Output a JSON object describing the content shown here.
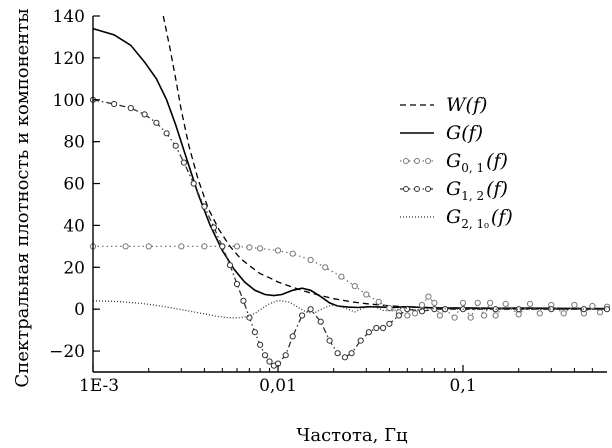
{
  "chart_data": {
    "type": "line",
    "xlabel": "Частота, Гц",
    "ylabel": "Спектральная плотность и компоненты",
    "xscale": "log",
    "xlim": [
      0.001,
      0.6
    ],
    "ylim": [
      -30,
      140
    ],
    "xticks": [
      {
        "value": 0.001,
        "label": "1E-3"
      },
      {
        "value": 0.01,
        "label": "0,01"
      },
      {
        "value": 0.1,
        "label": "0,1"
      }
    ],
    "yticks": [
      {
        "value": -20,
        "label": "−20"
      },
      {
        "value": 0,
        "label": "0"
      },
      {
        "value": 20,
        "label": "20"
      },
      {
        "value": 40,
        "label": "40"
      },
      {
        "value": 60,
        "label": "60"
      },
      {
        "value": 80,
        "label": "80"
      },
      {
        "value": 100,
        "label": "100"
      },
      {
        "value": 120,
        "label": "120"
      },
      {
        "value": 140,
        "label": "140"
      }
    ],
    "grid": false,
    "legend_position": "right",
    "series": [
      {
        "id": "W",
        "name": "W(f)",
        "label_main": "W",
        "label_sub": "",
        "label_arg": "(f)",
        "color": "#000000",
        "line_style": "dashed",
        "marker": "none",
        "x": [
          0.0024,
          0.0026,
          0.0028,
          0.003,
          0.0033,
          0.0037,
          0.0042,
          0.0048,
          0.0055,
          0.0063,
          0.0072,
          0.008,
          0.009,
          0.01,
          0.012,
          0.014,
          0.017,
          0.02,
          0.025,
          0.03,
          0.04,
          0.05,
          0.07,
          0.1,
          0.15,
          0.2,
          0.3,
          0.45,
          0.6
        ],
        "y": [
          140,
          125,
          110,
          95,
          78,
          62,
          48,
          38,
          30,
          24,
          20,
          17,
          15,
          13,
          10.5,
          8.5,
          6.5,
          5,
          3.5,
          2.6,
          1.6,
          1.1,
          0.7,
          0.4,
          0.3,
          0.2,
          0.15,
          0.1,
          0.1
        ]
      },
      {
        "id": "G",
        "name": "G(f)",
        "label_main": "G",
        "label_sub": "",
        "label_arg": "(f)",
        "color": "#000000",
        "line_style": "solid",
        "marker": "none",
        "x": [
          0.001,
          0.0013,
          0.0016,
          0.0019,
          0.0022,
          0.0025,
          0.0028,
          0.0032,
          0.0037,
          0.0043,
          0.005,
          0.0058,
          0.0066,
          0.0075,
          0.0085,
          0.0095,
          0.0105,
          0.012,
          0.0135,
          0.015,
          0.017,
          0.019,
          0.021,
          0.024,
          0.027,
          0.031,
          0.036,
          0.042,
          0.05,
          0.06,
          0.08,
          0.1,
          0.15,
          0.2,
          0.3,
          0.45,
          0.6
        ],
        "y": [
          134,
          131,
          126,
          118,
          110,
          100,
          88,
          72,
          55,
          40,
          28,
          19,
          13,
          9,
          7,
          6.5,
          7,
          9,
          10,
          9,
          6,
          3,
          1.5,
          1,
          0.8,
          1.2,
          1,
          0.8,
          1.2,
          0.8,
          0.5,
          0.6,
          0.4,
          0.5,
          0.4,
          0.3,
          0.3
        ]
      },
      {
        "id": "G01",
        "name": "G0,1(f)",
        "label_main": "G",
        "label_sub": "0, 1",
        "label_arg": "(f)",
        "color": "#777777",
        "line_style": "dotted",
        "marker": "circle",
        "x": [
          0.001,
          0.0015,
          0.002,
          0.003,
          0.004,
          0.005,
          0.006,
          0.007,
          0.008,
          0.01,
          0.012,
          0.015,
          0.018,
          0.022,
          0.026,
          0.03,
          0.035,
          0.04,
          0.045,
          0.05,
          0.055,
          0.06,
          0.065,
          0.07,
          0.075,
          0.08,
          0.09,
          0.1,
          0.11,
          0.12,
          0.13,
          0.14,
          0.15,
          0.17,
          0.2,
          0.23,
          0.26,
          0.3,
          0.35,
          0.4,
          0.45,
          0.5,
          0.55,
          0.6
        ],
        "y": [
          30,
          30,
          30,
          30,
          30,
          30,
          30,
          29.5,
          29,
          28,
          26.5,
          23.5,
          20,
          15.5,
          11,
          7,
          3.5,
          0.5,
          -1.5,
          -3,
          -2,
          2,
          6,
          3,
          -3,
          0,
          -4,
          3,
          -4,
          3,
          -3,
          3,
          -3,
          2.5,
          -2.5,
          2.5,
          -2,
          2,
          -2,
          2,
          -2,
          1.5,
          -1.5,
          1.2
        ]
      },
      {
        "id": "G12",
        "name": "G1,2(f)",
        "label_main": "G",
        "label_sub": "1, 2",
        "label_arg": "(f)",
        "color": "#333333",
        "line_style": "dashdot",
        "marker": "circle",
        "x": [
          0.001,
          0.0013,
          0.0016,
          0.0019,
          0.0022,
          0.0025,
          0.0028,
          0.0031,
          0.0035,
          0.004,
          0.0045,
          0.005,
          0.0055,
          0.006,
          0.0065,
          0.007,
          0.0075,
          0.008,
          0.0085,
          0.009,
          0.0095,
          0.01,
          0.011,
          0.012,
          0.0135,
          0.015,
          0.017,
          0.019,
          0.021,
          0.023,
          0.025,
          0.028,
          0.031,
          0.034,
          0.037,
          0.04,
          0.045,
          0.05,
          0.06,
          0.07,
          0.08,
          0.1,
          0.15,
          0.2,
          0.3,
          0.45,
          0.6
        ],
        "y": [
          100,
          98,
          96,
          93,
          89,
          84,
          78,
          70,
          60,
          49,
          39,
          30,
          21,
          12,
          4,
          -4,
          -11,
          -17,
          -22,
          -25,
          -27,
          -26,
          -22,
          -13,
          -3,
          0,
          -6,
          -15,
          -21,
          -23,
          -21,
          -15,
          -11,
          -9,
          -9,
          -7,
          -3,
          0,
          -1,
          0,
          0,
          0,
          0,
          0,
          0,
          0,
          0
        ]
      },
      {
        "id": "G21",
        "name": "G2,1(f)",
        "label_main": "G",
        "label_sub": "2, 1₀",
        "label_arg": "(f)",
        "color": "#333333",
        "line_style": "fine-dotted",
        "marker": "none",
        "x": [
          0.001,
          0.0014,
          0.0018,
          0.0022,
          0.0026,
          0.003,
          0.0035,
          0.004,
          0.0046,
          0.0053,
          0.006,
          0.0068,
          0.0075,
          0.0082,
          0.009,
          0.01,
          0.0115,
          0.013,
          0.0145,
          0.016,
          0.018,
          0.02,
          0.023,
          0.026,
          0.029,
          0.033,
          0.037,
          0.042,
          0.048,
          0.055,
          0.065,
          0.08,
          0.1,
          0.15,
          0.2,
          0.3,
          0.45,
          0.6
        ],
        "y": [
          4,
          3.6,
          2.8,
          1.8,
          0.8,
          -0.2,
          -1.3,
          -2.2,
          -3.3,
          -4,
          -4.2,
          -3.6,
          -2,
          0.3,
          2.6,
          4.2,
          3.4,
          0.6,
          -1.8,
          -1.4,
          0.8,
          2.2,
          0.5,
          -1.3,
          0.6,
          1.4,
          -0.6,
          -0.8,
          0.8,
          -0.4,
          0.3,
          0.1,
          0,
          0,
          0,
          0,
          0,
          0
        ]
      }
    ]
  }
}
